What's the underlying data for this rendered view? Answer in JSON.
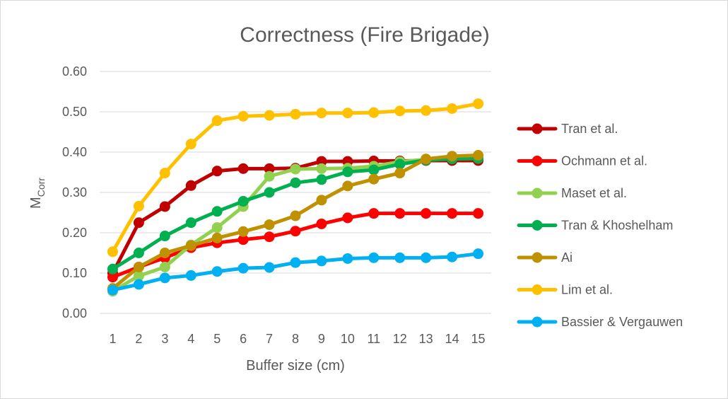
{
  "chart_data": {
    "type": "line",
    "title": "Correctness (Fire Brigade)",
    "xlabel": "Buffer size (cm)",
    "ylabel": {
      "main": "M",
      "subscript": "Corr"
    },
    "x": [
      1,
      2,
      3,
      4,
      5,
      6,
      7,
      8,
      9,
      10,
      11,
      12,
      13,
      14,
      15
    ],
    "ylim": [
      0,
      0.6
    ],
    "yticks": [
      "0.00",
      "0.10",
      "0.20",
      "0.30",
      "0.40",
      "0.50",
      "0.60"
    ],
    "grid": true,
    "legend_position": "right",
    "series": [
      {
        "name": "Tran et al.",
        "color": "#C00000",
        "values": [
          0.1,
          0.225,
          0.265,
          0.317,
          0.353,
          0.359,
          0.359,
          0.36,
          0.377,
          0.377,
          0.378,
          0.378,
          0.379,
          0.379,
          0.379
        ]
      },
      {
        "name": "Ochmann et al.",
        "color": "#FF0000",
        "values": [
          0.09,
          0.115,
          0.138,
          0.163,
          0.175,
          0.183,
          0.19,
          0.204,
          0.222,
          0.237,
          0.248,
          0.248,
          0.248,
          0.248,
          0.248
        ]
      },
      {
        "name": "Maset et al.",
        "color": "#92D050",
        "values": [
          0.055,
          0.093,
          0.115,
          0.17,
          0.213,
          0.265,
          0.34,
          0.358,
          0.359,
          0.36,
          0.365,
          0.376,
          0.382,
          0.388,
          0.389
        ]
      },
      {
        "name": "Tran & Khoshelham",
        "color": "#00B050",
        "values": [
          0.11,
          0.15,
          0.192,
          0.225,
          0.253,
          0.278,
          0.3,
          0.324,
          0.332,
          0.351,
          0.356,
          0.37,
          0.38,
          0.383,
          0.384
        ]
      },
      {
        "name": "Ai",
        "color": "#BF9000",
        "values": [
          0.062,
          0.115,
          0.15,
          0.168,
          0.187,
          0.203,
          0.22,
          0.242,
          0.281,
          0.316,
          0.333,
          0.348,
          0.383,
          0.39,
          0.392
        ]
      },
      {
        "name": "Lim et al.",
        "color": "#FFC000",
        "values": [
          0.153,
          0.266,
          0.348,
          0.42,
          0.478,
          0.489,
          0.491,
          0.494,
          0.497,
          0.497,
          0.498,
          0.502,
          0.503,
          0.508,
          0.52
        ]
      },
      {
        "name": "Bassier & Vergauwen",
        "color": "#00B0F0",
        "values": [
          0.058,
          0.072,
          0.088,
          0.094,
          0.104,
          0.112,
          0.114,
          0.126,
          0.13,
          0.136,
          0.138,
          0.138,
          0.138,
          0.14,
          0.148
        ]
      }
    ]
  }
}
